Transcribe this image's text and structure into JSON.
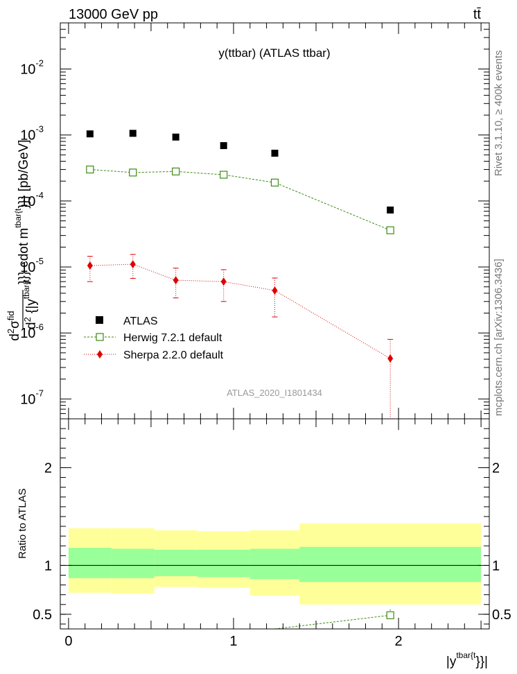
{
  "header": {
    "energy_label": "13000 GeV pp",
    "process_label": "tt̄"
  },
  "side_labels": {
    "rivet": "Rivet 3.1.10, ≥ 400k events",
    "source": "mcplots.cern.ch [arXiv:1306.3436]"
  },
  "chart_data": [
    {
      "type": "scatter",
      "panel": "main",
      "title": "y(ttbar) (ATLAS ttbar)",
      "watermark": "ATLAS_2020_I1801434",
      "ylabel_parts": {
        "top_d": "d",
        "top_d2": "2",
        "top_sigma": "σ",
        "top_fid": "fid",
        "bot_d": "d",
        "bot_2": "2",
        "bot_y": " {|y",
        "bot_tbar": "tbar{t",
        "rest": "}}} cdot m",
        "rest_sup": "tbar{t",
        "unit": "}}} [pb/GeV]"
      },
      "yscale": "log",
      "ylim": [
        5e-08,
        0.05
      ],
      "xlim": [
        -0.05,
        2.55
      ],
      "y_ticks": [
        {
          "value": 1e-07,
          "mant": "10",
          "exp": "-7"
        },
        {
          "value": 1e-06,
          "mant": "10",
          "exp": "-6"
        },
        {
          "value": 1e-05,
          "mant": "10",
          "exp": "-5"
        },
        {
          "value": 0.0001,
          "mant": "10",
          "exp": "-4"
        },
        {
          "value": 0.001,
          "mant": "10",
          "exp": "-3"
        },
        {
          "value": 0.01,
          "mant": "10",
          "exp": "-2"
        }
      ],
      "legend_position": "middle-left",
      "series": [
        {
          "name": "ATLAS",
          "color": "#000000",
          "marker": "filled-square",
          "x": [
            0.13,
            0.39,
            0.65,
            0.94,
            1.25,
            1.95
          ],
          "y": [
            0.00104,
            0.00106,
            0.00093,
            0.00069,
            0.00053,
            7.3e-05
          ]
        },
        {
          "name": "Herwig 7.2.1 default",
          "color": "#3a8a12",
          "marker": "open-square",
          "line": "dashed",
          "x": [
            0.13,
            0.39,
            0.65,
            0.94,
            1.25,
            1.95
          ],
          "y": [
            0.0003,
            0.00027,
            0.00028,
            0.00025,
            0.00019,
            3.6e-05
          ]
        },
        {
          "name": "Sherpa 2.2.0 default",
          "color": "#dd0000",
          "marker": "filled-diamond",
          "line": "dotted",
          "x": [
            0.13,
            0.39,
            0.65,
            0.94,
            1.25,
            1.95
          ],
          "y": [
            1.05e-05,
            1.1e-05,
            6.3e-06,
            6e-06,
            4.4e-06,
            4.1e-07
          ],
          "yerr_low": [
            6e-06,
            6.7e-06,
            3.4e-06,
            3e-06,
            1.75e-06,
            3e-08
          ],
          "yerr_high": [
            1.45e-05,
            1.55e-05,
            9.6e-06,
            9.1e-06,
            6.8e-06,
            8e-07
          ]
        }
      ]
    },
    {
      "type": "line",
      "panel": "ratio",
      "ylabel": "Ratio to ATLAS",
      "xlabel_main": "|y",
      "xlabel_sup": "tbar{t",
      "xlabel_end": "}}|",
      "xlim": [
        -0.05,
        2.55
      ],
      "ylim": [
        0.35,
        2.5
      ],
      "x_ticks": [
        {
          "value": 0,
          "label": "0"
        },
        {
          "value": 1,
          "label": "1"
        },
        {
          "value": 2,
          "label": "2"
        }
      ],
      "y_ticks": [
        {
          "value": 0.5,
          "label": "0.5"
        },
        {
          "value": 1,
          "label": "1"
        },
        {
          "value": 2,
          "label": "2"
        }
      ],
      "bands": [
        {
          "x0": 0.0,
          "x1": 0.26,
          "stat_lo": 0.87,
          "stat_hi": 1.18,
          "tot_lo": 0.72,
          "tot_hi": 1.38
        },
        {
          "x0": 0.26,
          "x1": 0.52,
          "stat_lo": 0.87,
          "stat_hi": 1.17,
          "tot_lo": 0.71,
          "tot_hi": 1.38
        },
        {
          "x0": 0.52,
          "x1": 0.78,
          "stat_lo": 0.89,
          "stat_hi": 1.16,
          "tot_lo": 0.78,
          "tot_hi": 1.36
        },
        {
          "x0": 0.78,
          "x1": 1.1,
          "stat_lo": 0.88,
          "stat_hi": 1.16,
          "tot_lo": 0.77,
          "tot_hi": 1.35
        },
        {
          "x0": 1.1,
          "x1": 1.4,
          "stat_lo": 0.86,
          "stat_hi": 1.17,
          "tot_lo": 0.69,
          "tot_hi": 1.36
        },
        {
          "x0": 1.4,
          "x1": 2.5,
          "stat_lo": 0.83,
          "stat_hi": 1.19,
          "tot_lo": 0.6,
          "tot_hi": 1.43
        }
      ],
      "band_colors": {
        "stat": "#99ff99",
        "total": "#ffff99"
      },
      "reference_line": 1.0,
      "series": [
        {
          "name": "Herwig 7.2.1 default",
          "color": "#3a8a12",
          "marker": "open-square",
          "line": "dashed",
          "x": [
            1.25,
            1.95
          ],
          "y": [
            0.35,
            0.49
          ],
          "yerr_low": [
            0.35,
            0.45
          ],
          "yerr_high": [
            0.35,
            0.55
          ],
          "marker_visible": [
            false,
            true
          ]
        }
      ]
    }
  ]
}
